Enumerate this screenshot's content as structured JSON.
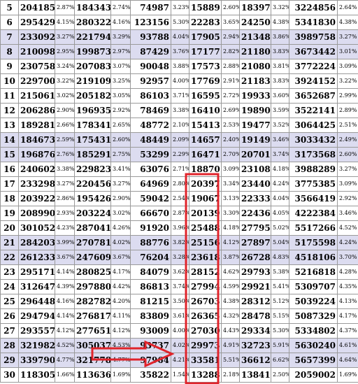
{
  "rows": [
    {
      "n": "5",
      "c": [
        "204185",
        "2.87%",
        "184343",
        "2.74%",
        "74987",
        "3.23%",
        "15889",
        "2.60%",
        "18397",
        "3.32%",
        "3224856",
        "2.64%"
      ],
      "shade": false
    },
    {
      "n": "6",
      "c": [
        "295429",
        "4.15%",
        "280322",
        "4.16%",
        "123156",
        "5.30%",
        "22283",
        "3.65%",
        "24250",
        "4.38%",
        "5341830",
        "4.38%"
      ],
      "shade": false
    },
    {
      "n": "7",
      "c": [
        "233092",
        "3.27%",
        "221794",
        "3.29%",
        "93788",
        "4.04%",
        "17905",
        "2.94%",
        "21348",
        "3.86%",
        "3989758",
        "3.27%"
      ],
      "shade": true
    },
    {
      "n": "8",
      "c": [
        "210098",
        "2.95%",
        "199873",
        "2.97%",
        "87429",
        "3.76%",
        "17177",
        "2.82%",
        "21180",
        "3.83%",
        "3673442",
        "3.01%"
      ],
      "shade": true
    },
    {
      "n": "9",
      "c": [
        "230758",
        "3.24%",
        "207083",
        "3.07%",
        "90048",
        "3.88%",
        "17573",
        "2.88%",
        "21080",
        "3.81%",
        "3772224",
        "3.09%"
      ],
      "shade": false
    },
    {
      "n": "10",
      "c": [
        "229700",
        "3.22%",
        "219109",
        "3.25%",
        "92957",
        "4.00%",
        "17769",
        "2.91%",
        "21183",
        "3.83%",
        "3924152",
        "3.22%"
      ],
      "shade": false
    },
    {
      "n": "11",
      "c": [
        "215061",
        "3.02%",
        "205182",
        "3.05%",
        "86103",
        "3.71%",
        "16595",
        "2.72%",
        "19933",
        "3.60%",
        "3652687",
        "2.99%"
      ],
      "shade": false
    },
    {
      "n": "12",
      "c": [
        "206286",
        "2.90%",
        "196935",
        "2.92%",
        "78469",
        "3.38%",
        "16410",
        "2.69%",
        "19890",
        "3.59%",
        "3522141",
        "2.89%"
      ],
      "shade": false
    },
    {
      "n": "13",
      "c": [
        "189281",
        "2.66%",
        "178341",
        "2.65%",
        "48772",
        "2.10%",
        "15413",
        "2.53%",
        "19477",
        "3.52%",
        "3064425",
        "2.51%"
      ],
      "shade": false
    },
    {
      "n": "14",
      "c": [
        "184673",
        "2.59%",
        "175431",
        "2.60%",
        "48449",
        "2.09%",
        "14657",
        "2.40%",
        "19149",
        "3.46%",
        "3033432",
        "2.49%"
      ],
      "shade": true
    },
    {
      "n": "15",
      "c": [
        "196876",
        "2.76%",
        "185291",
        "2.75%",
        "53299",
        "2.29%",
        "16471",
        "2.70%",
        "20701",
        "3.74%",
        "3173568",
        "2.60%"
      ],
      "shade": true
    },
    {
      "n": "16",
      "c": [
        "240602",
        "3.38%",
        "229823",
        "3.41%",
        "63076",
        "2.71%",
        "18870",
        "3.09%",
        "23108",
        "4.18%",
        "3988289",
        "3.27%"
      ],
      "shade": false
    },
    {
      "n": "17",
      "c": [
        "233298",
        "3.27%",
        "220456",
        "3.27%",
        "64969",
        "2.80%",
        "20397",
        "3.34%",
        "23440",
        "4.24%",
        "3775385",
        "3.09%"
      ],
      "shade": false
    },
    {
      "n": "18",
      "c": [
        "203922",
        "2.86%",
        "195426",
        "2.90%",
        "59042",
        "2.54%",
        "19067",
        "3.13%",
        "22333",
        "4.04%",
        "3566419",
        "2.92%"
      ],
      "shade": false
    },
    {
      "n": "19",
      "c": [
        "208990",
        "2.93%",
        "203224",
        "3.02%",
        "66670",
        "2.87%",
        "20139",
        "3.30%",
        "22436",
        "4.05%",
        "4222384",
        "3.46%"
      ],
      "shade": false
    },
    {
      "n": "20",
      "c": [
        "301052",
        "4.23%",
        "287041",
        "4.26%",
        "91920",
        "3.96%",
        "25488",
        "4.18%",
        "27795",
        "5.02%",
        "5517266",
        "4.52%"
      ],
      "shade": false
    },
    {
      "n": "21",
      "c": [
        "284203",
        "3.99%",
        "270781",
        "4.02%",
        "88776",
        "3.82%",
        "25156",
        "4.12%",
        "27897",
        "5.04%",
        "5175598",
        "4.24%"
      ],
      "shade": true
    },
    {
      "n": "22",
      "c": [
        "261233",
        "3.67%",
        "247609",
        "3.67%",
        "76204",
        "3.28%",
        "23618",
        "3.87%",
        "26728",
        "4.83%",
        "4518106",
        "3.70%"
      ],
      "shade": true
    },
    {
      "n": "23",
      "c": [
        "295171",
        "4.14%",
        "280825",
        "4.17%",
        "84079",
        "3.62%",
        "28152",
        "4.62%",
        "29793",
        "5.38%",
        "5216818",
        "4.28%"
      ],
      "shade": false
    },
    {
      "n": "24",
      "c": [
        "312647",
        "4.39%",
        "297880",
        "4.42%",
        "86813",
        "3.74%",
        "27994",
        "4.59%",
        "29921",
        "5.41%",
        "5309707",
        "4.35%"
      ],
      "shade": false
    },
    {
      "n": "25",
      "c": [
        "296448",
        "4.16%",
        "282782",
        "4.20%",
        "81215",
        "3.50%",
        "26703",
        "4.38%",
        "28312",
        "5.12%",
        "5039224",
        "4.13%"
      ],
      "shade": false
    },
    {
      "n": "26",
      "c": [
        "294794",
        "4.14%",
        "276817",
        "4.11%",
        "83809",
        "3.61%",
        "26365",
        "4.32%",
        "28478",
        "5.15%",
        "5087329",
        "4.17%"
      ],
      "shade": false
    },
    {
      "n": "27",
      "c": [
        "293557",
        "4.12%",
        "277651",
        "4.12%",
        "93009",
        "4.00%",
        "27030",
        "4.43%",
        "29334",
        "5.30%",
        "5334802",
        "4.37%"
      ],
      "shade": false
    },
    {
      "n": "28",
      "c": [
        "321982",
        "4.52%",
        "305037",
        "4.53%",
        "93737",
        "4.02%",
        "29973",
        "4.91%",
        "32723",
        "5.91%",
        "5630240",
        "4.61%"
      ],
      "shade": true
    },
    {
      "n": "29",
      "c": [
        "339790",
        "4.77%",
        "321778",
        "4.77%",
        "97964",
        "4.21%",
        "33581",
        "5.51%",
        "36612",
        "6.62%",
        "5657399",
        "4.64%"
      ],
      "shade": true
    },
    {
      "n": "30",
      "c": [
        "118305",
        "1.66%",
        "113636",
        "1.69%",
        "35822",
        "1.54%",
        "13288",
        "2.18%",
        "13841",
        "2.50%",
        "2059002",
        "1.69%"
      ],
      "shade": false
    }
  ],
  "annotation_color": "#e0242b"
}
